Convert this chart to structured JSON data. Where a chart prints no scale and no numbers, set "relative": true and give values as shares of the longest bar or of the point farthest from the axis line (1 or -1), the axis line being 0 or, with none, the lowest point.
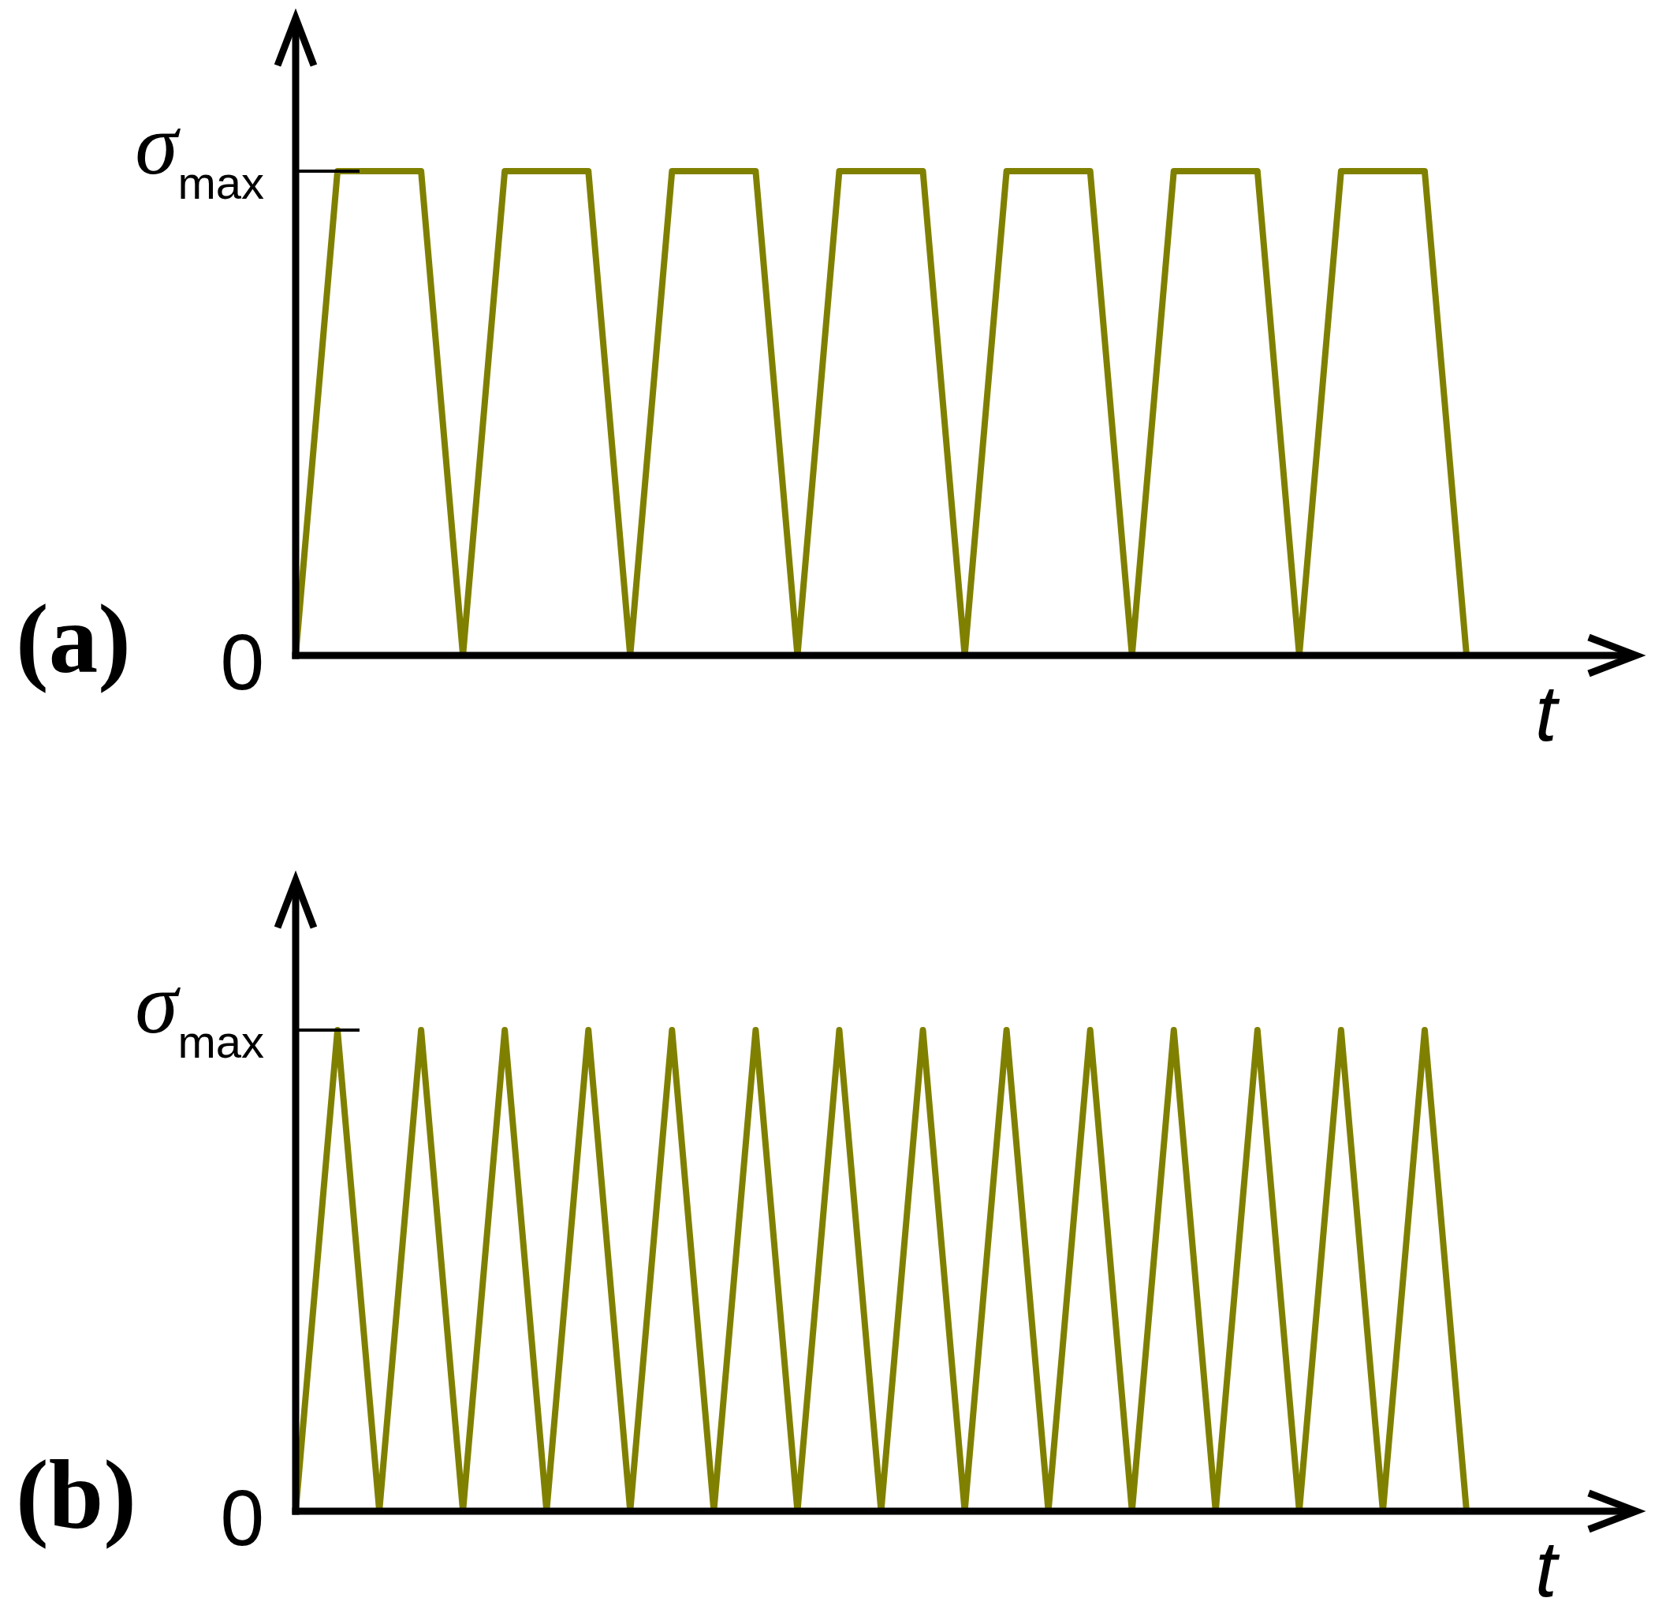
{
  "chart_data": [
    {
      "type": "line",
      "title": "(a)",
      "xlabel": "t",
      "relative": true,
      "categories": [
        null,
        null,
        null,
        null,
        null,
        null,
        null,
        null,
        null,
        null,
        null,
        null,
        null,
        null,
        null,
        null,
        null,
        null,
        null,
        null,
        null,
        null,
        null,
        null,
        null,
        null,
        null,
        null,
        null
      ],
      "values": [
        0,
        1,
        1,
        1,
        0,
        1,
        1,
        1,
        0,
        1,
        1,
        1,
        0,
        1,
        1,
        1,
        0,
        1,
        1,
        1,
        0,
        1,
        1,
        1,
        0,
        1,
        1,
        1,
        0
      ],
      "color": "#808000",
      "annotations": [
        "0",
        "σ$_{max}$"
      ]
    },
    {
      "type": "line",
      "title": "(b)",
      "xlabel": "t",
      "relative": true,
      "categories": [
        null,
        null,
        null,
        null,
        null,
        null,
        null,
        null,
        null,
        null,
        null,
        null,
        null,
        null,
        null,
        null,
        null,
        null,
        null,
        null,
        null,
        null,
        null,
        null,
        null,
        null,
        null,
        null,
        null
      ],
      "values": [
        0,
        1,
        0,
        1,
        0,
        1,
        0,
        1,
        0,
        1,
        0,
        1,
        0,
        1,
        0,
        1,
        0,
        1,
        0,
        1,
        0,
        1,
        0,
        1,
        0,
        1,
        0,
        1,
        0
      ],
      "color": "#808000",
      "annotations": [
        "0",
        "σ$_{max}$"
      ]
    }
  ]
}
